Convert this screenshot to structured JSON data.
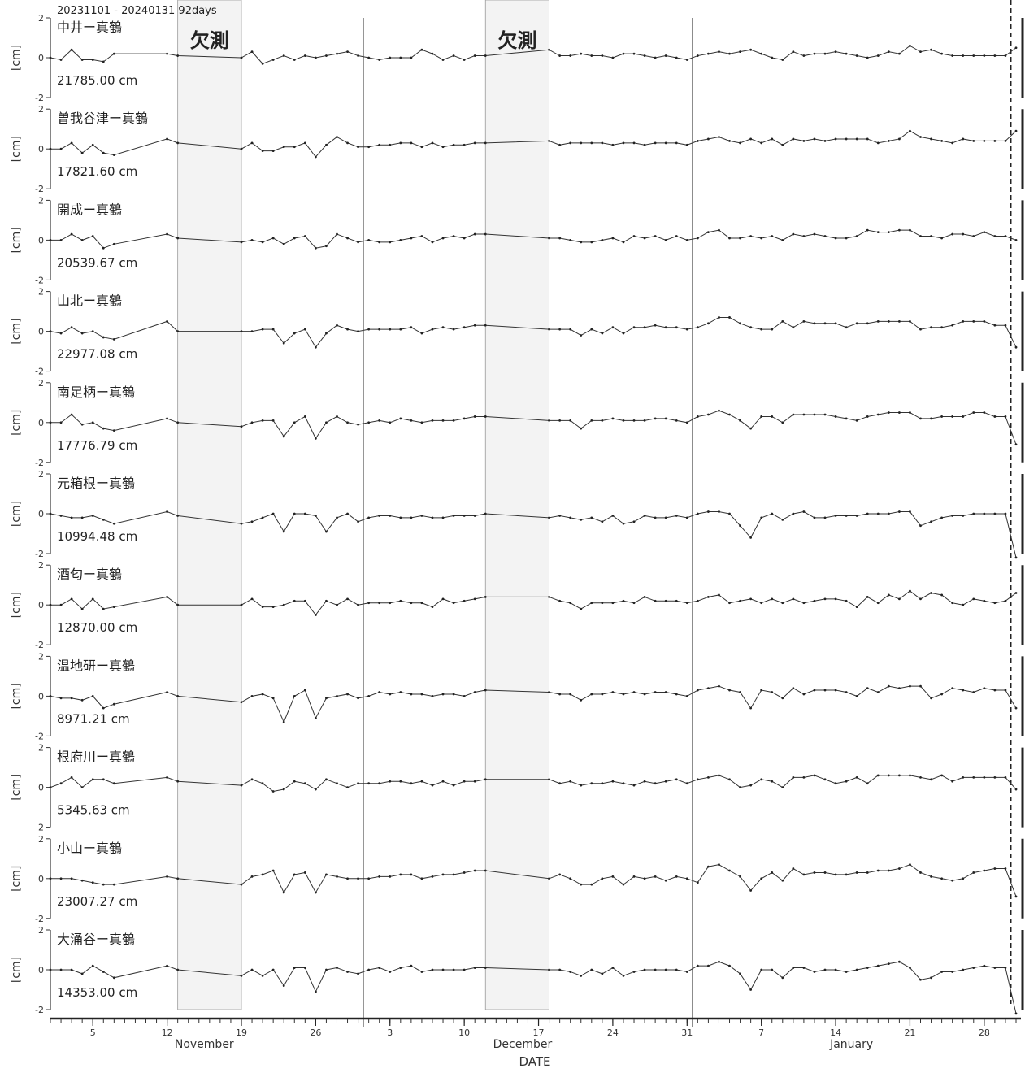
{
  "period_label": "20231101 - 20240131 92days",
  "chart_data": {
    "type": "line",
    "xlabel": "DATE",
    "ylabel": "[cm]",
    "ylim": [
      -2,
      2
    ],
    "yticks": [
      2,
      0,
      -2
    ],
    "x_start": "2023-11-01",
    "x_end": "2024-01-31",
    "month_labels": [
      "November",
      "December",
      "January"
    ],
    "day_ticks": [
      {
        "date": "2023-11-05",
        "label": "5"
      },
      {
        "date": "2023-11-12",
        "label": "12"
      },
      {
        "date": "2023-11-19",
        "label": "19"
      },
      {
        "date": "2023-11-26",
        "label": "26"
      },
      {
        "date": "2023-12-03",
        "label": "3"
      },
      {
        "date": "2023-12-10",
        "label": "10"
      },
      {
        "date": "2023-12-17",
        "label": "17"
      },
      {
        "date": "2023-12-24",
        "label": "24"
      },
      {
        "date": "2023-12-31",
        "label": "31"
      },
      {
        "date": "2024-01-07",
        "label": "7"
      },
      {
        "date": "2024-01-14",
        "label": "14"
      },
      {
        "date": "2024-01-21",
        "label": "21"
      },
      {
        "date": "2024-01-28",
        "label": "28"
      }
    ],
    "month_boundaries": [
      "2023-11-30",
      "2023-12-31"
    ],
    "missing_periods": [
      {
        "label": "欠測",
        "start": "2023-11-13",
        "end": "2023-11-19"
      },
      {
        "label": "欠測",
        "start": "2023-12-12",
        "end": "2023-12-18"
      }
    ],
    "marker_date": "2024-01-30",
    "series_dates": [
      "2023-11-01",
      "2023-11-02",
      "2023-11-03",
      "2023-11-04",
      "2023-11-05",
      "2023-11-06",
      "2023-11-07",
      "2023-11-12",
      "2023-11-13",
      "2023-11-19",
      "2023-11-20",
      "2023-11-21",
      "2023-11-22",
      "2023-11-23",
      "2023-11-24",
      "2023-11-25",
      "2023-11-26",
      "2023-11-27",
      "2023-11-28",
      "2023-11-29",
      "2023-11-30",
      "2023-12-01",
      "2023-12-02",
      "2023-12-03",
      "2023-12-04",
      "2023-12-05",
      "2023-12-06",
      "2023-12-07",
      "2023-12-08",
      "2023-12-09",
      "2023-12-10",
      "2023-12-11",
      "2023-12-12",
      "2023-12-18",
      "2023-12-19",
      "2023-12-20",
      "2023-12-21",
      "2023-12-22",
      "2023-12-23",
      "2023-12-24",
      "2023-12-25",
      "2023-12-26",
      "2023-12-27",
      "2023-12-28",
      "2023-12-29",
      "2023-12-30",
      "2023-12-31",
      "2024-01-01",
      "2024-01-02",
      "2024-01-03",
      "2024-01-04",
      "2024-01-05",
      "2024-01-06",
      "2024-01-07",
      "2024-01-08",
      "2024-01-09",
      "2024-01-10",
      "2024-01-11",
      "2024-01-12",
      "2024-01-13",
      "2024-01-14",
      "2024-01-15",
      "2024-01-16",
      "2024-01-17",
      "2024-01-18",
      "2024-01-19",
      "2024-01-20",
      "2024-01-21",
      "2024-01-22",
      "2024-01-23",
      "2024-01-24",
      "2024-01-25",
      "2024-01-26",
      "2024-01-27",
      "2024-01-28",
      "2024-01-29",
      "2024-01-30",
      "2024-01-31"
    ],
    "series": [
      {
        "name": "中井ー真鶴",
        "distance": "21785.00 cm",
        "values": [
          0,
          -0.1,
          0.4,
          -0.1,
          -0.1,
          -0.2,
          0.2,
          0.2,
          0.1,
          0,
          0.3,
          -0.3,
          -0.1,
          0.1,
          -0.1,
          0.1,
          0,
          0.1,
          0.2,
          0.3,
          0.1,
          0,
          -0.1,
          0,
          0,
          0,
          0.4,
          0.2,
          -0.1,
          0.1,
          -0.1,
          0.1,
          0.1,
          0.4,
          0.1,
          0.1,
          0.2,
          0.1,
          0.1,
          0,
          0.2,
          0.2,
          0.1,
          0,
          0.1,
          0,
          -0.1,
          0.1,
          0.2,
          0.3,
          0.2,
          0.3,
          0.4,
          0.2,
          0,
          -0.1,
          0.3,
          0.1,
          0.2,
          0.2,
          0.3,
          0.2,
          0.1,
          0,
          0.1,
          0.3,
          0.2,
          0.6,
          0.3,
          0.4,
          0.2,
          0.1,
          0.1,
          0.1,
          0.1,
          0.1,
          0.1,
          0.5
        ]
      },
      {
        "name": "曽我谷津ー真鶴",
        "distance": "17821.60 cm",
        "values": [
          0,
          0,
          0.3,
          -0.2,
          0.2,
          -0.2,
          -0.3,
          0.5,
          0.3,
          0,
          0.3,
          -0.1,
          -0.1,
          0.1,
          0.1,
          0.3,
          -0.4,
          0.2,
          0.6,
          0.3,
          0.1,
          0.1,
          0.2,
          0.2,
          0.3,
          0.3,
          0.1,
          0.3,
          0.1,
          0.2,
          0.2,
          0.3,
          0.3,
          0.4,
          0.2,
          0.3,
          0.3,
          0.3,
          0.3,
          0.2,
          0.3,
          0.3,
          0.2,
          0.3,
          0.3,
          0.3,
          0.2,
          0.4,
          0.5,
          0.6,
          0.4,
          0.3,
          0.5,
          0.3,
          0.5,
          0.2,
          0.5,
          0.4,
          0.5,
          0.4,
          0.5,
          0.5,
          0.5,
          0.5,
          0.3,
          0.4,
          0.5,
          0.9,
          0.6,
          0.5,
          0.4,
          0.3,
          0.5,
          0.4,
          0.4,
          0.4,
          0.4,
          0.9
        ]
      },
      {
        "name": "開成ー真鶴",
        "distance": "20539.67 cm",
        "values": [
          0,
          0,
          0.3,
          0,
          0.2,
          -0.4,
          -0.2,
          0.3,
          0.1,
          -0.1,
          0,
          -0.1,
          0.1,
          -0.2,
          0.1,
          0.2,
          -0.4,
          -0.3,
          0.3,
          0.1,
          -0.1,
          0,
          -0.1,
          -0.1,
          0,
          0.1,
          0.2,
          -0.1,
          0.1,
          0.2,
          0.1,
          0.3,
          0.3,
          0.1,
          0.1,
          0,
          -0.1,
          -0.1,
          0,
          0.1,
          -0.1,
          0.2,
          0.1,
          0.2,
          0,
          0.2,
          0,
          0.1,
          0.4,
          0.5,
          0.1,
          0.1,
          0.2,
          0.1,
          0.2,
          0,
          0.3,
          0.2,
          0.3,
          0.2,
          0.1,
          0.1,
          0.2,
          0.5,
          0.4,
          0.4,
          0.5,
          0.5,
          0.2,
          0.2,
          0.1,
          0.3,
          0.3,
          0.2,
          0.4,
          0.2,
          0.2,
          0
        ]
      },
      {
        "name": "山北ー真鶴",
        "distance": "22977.08 cm",
        "values": [
          0,
          -0.1,
          0.2,
          -0.1,
          0,
          -0.3,
          -0.4,
          0.5,
          0,
          0,
          0,
          0.1,
          0.1,
          -0.6,
          -0.1,
          0.1,
          -0.8,
          -0.1,
          0.3,
          0.1,
          0,
          0.1,
          0.1,
          0.1,
          0.1,
          0.2,
          -0.1,
          0.1,
          0.2,
          0.1,
          0.2,
          0.3,
          0.3,
          0.1,
          0.1,
          0.1,
          -0.2,
          0.1,
          -0.1,
          0.2,
          -0.1,
          0.2,
          0.2,
          0.3,
          0.2,
          0.2,
          0.1,
          0.2,
          0.4,
          0.7,
          0.7,
          0.4,
          0.2,
          0.1,
          0.1,
          0.5,
          0.2,
          0.5,
          0.4,
          0.4,
          0.4,
          0.2,
          0.4,
          0.4,
          0.5,
          0.5,
          0.5,
          0.5,
          0.1,
          0.2,
          0.2,
          0.3,
          0.5,
          0.5,
          0.5,
          0.3,
          0.3,
          -0.8
        ]
      },
      {
        "name": "南足柄ー真鶴",
        "distance": "17776.79 cm",
        "values": [
          0,
          0,
          0.4,
          -0.1,
          0,
          -0.3,
          -0.4,
          0.2,
          0,
          -0.2,
          0,
          0.1,
          0.1,
          -0.7,
          0,
          0.3,
          -0.8,
          0,
          0.3,
          0,
          -0.1,
          0,
          0.1,
          0,
          0.2,
          0.1,
          0,
          0.1,
          0.1,
          0.1,
          0.2,
          0.3,
          0.3,
          0.1,
          0.1,
          0.1,
          -0.3,
          0.1,
          0.1,
          0.2,
          0.1,
          0.1,
          0.1,
          0.2,
          0.2,
          0.1,
          0,
          0.3,
          0.4,
          0.6,
          0.4,
          0.1,
          -0.3,
          0.3,
          0.3,
          0,
          0.4,
          0.4,
          0.4,
          0.4,
          0.3,
          0.2,
          0.1,
          0.3,
          0.4,
          0.5,
          0.5,
          0.5,
          0.2,
          0.2,
          0.3,
          0.3,
          0.3,
          0.5,
          0.5,
          0.3,
          0.3,
          -1.1
        ]
      },
      {
        "name": "元箱根ー真鶴",
        "distance": "10994.48 cm",
        "values": [
          0,
          -0.1,
          -0.2,
          -0.2,
          -0.1,
          -0.3,
          -0.5,
          0.1,
          -0.1,
          -0.5,
          -0.4,
          -0.2,
          0,
          -0.9,
          0,
          0,
          -0.1,
          -0.9,
          -0.2,
          0,
          -0.4,
          -0.2,
          -0.1,
          -0.1,
          -0.2,
          -0.2,
          -0.1,
          -0.2,
          -0.2,
          -0.1,
          -0.1,
          -0.1,
          0,
          -0.2,
          -0.1,
          -0.2,
          -0.3,
          -0.2,
          -0.4,
          -0.1,
          -0.5,
          -0.4,
          -0.1,
          -0.2,
          -0.2,
          -0.1,
          -0.2,
          0,
          0.1,
          0.1,
          0,
          -0.6,
          -1.2,
          -0.2,
          0,
          -0.3,
          0,
          0.1,
          -0.2,
          -0.2,
          -0.1,
          -0.1,
          -0.1,
          0,
          0,
          0,
          0.1,
          0.1,
          -0.6,
          -0.4,
          -0.2,
          -0.1,
          -0.1,
          0,
          0,
          0,
          0,
          -2.2
        ]
      },
      {
        "name": "酒匂ー真鶴",
        "distance": "12870.00 cm",
        "values": [
          0,
          0,
          0.3,
          -0.2,
          0.3,
          -0.2,
          -0.1,
          0.4,
          0,
          0,
          0.3,
          -0.1,
          -0.1,
          0,
          0.2,
          0.2,
          -0.5,
          0.2,
          0,
          0.3,
          0,
          0.1,
          0.1,
          0.1,
          0.2,
          0.1,
          0.1,
          -0.1,
          0.3,
          0.1,
          0.2,
          0.3,
          0.4,
          0.4,
          0.2,
          0.1,
          -0.2,
          0.1,
          0.1,
          0.1,
          0.2,
          0.1,
          0.4,
          0.2,
          0.2,
          0.2,
          0.1,
          0.2,
          0.4,
          0.5,
          0.1,
          0.2,
          0.3,
          0.1,
          0.3,
          0.1,
          0.3,
          0.1,
          0.2,
          0.3,
          0.3,
          0.2,
          -0.1,
          0.4,
          0.1,
          0.5,
          0.3,
          0.7,
          0.3,
          0.6,
          0.5,
          0.1,
          0,
          0.3,
          0.2,
          0.1,
          0.2,
          0.6
        ]
      },
      {
        "name": "温地研ー真鶴",
        "distance": "8971.21 cm",
        "values": [
          0,
          -0.1,
          -0.1,
          -0.2,
          0,
          -0.6,
          -0.4,
          0.2,
          0,
          -0.3,
          0,
          0.1,
          -0.1,
          -1.3,
          0,
          0.3,
          -1.1,
          -0.1,
          0,
          0.1,
          -0.1,
          0,
          0.2,
          0.1,
          0.2,
          0.1,
          0.1,
          0,
          0.1,
          0.1,
          0,
          0.2,
          0.3,
          0.2,
          0.1,
          0.1,
          -0.2,
          0.1,
          0.1,
          0.2,
          0.1,
          0.2,
          0.1,
          0.2,
          0.2,
          0.1,
          0,
          0.3,
          0.4,
          0.5,
          0.3,
          0.2,
          -0.6,
          0.3,
          0.2,
          -0.1,
          0.4,
          0.1,
          0.3,
          0.3,
          0.3,
          0.2,
          0,
          0.4,
          0.2,
          0.5,
          0.4,
          0.5,
          0.5,
          -0.1,
          0.1,
          0.4,
          0.3,
          0.2,
          0.4,
          0.3,
          0.3,
          -0.6
        ]
      },
      {
        "name": "根府川ー真鶴",
        "distance": "5345.63 cm",
        "values": [
          0,
          0.2,
          0.5,
          0,
          0.4,
          0.4,
          0.2,
          0.5,
          0.3,
          0.1,
          0.4,
          0.2,
          -0.2,
          -0.1,
          0.3,
          0.2,
          -0.1,
          0.4,
          0.2,
          0,
          0.2,
          0.2,
          0.2,
          0.3,
          0.3,
          0.2,
          0.3,
          0.1,
          0.3,
          0.1,
          0.3,
          0.3,
          0.4,
          0.4,
          0.2,
          0.3,
          0.1,
          0.2,
          0.2,
          0.3,
          0.2,
          0.1,
          0.3,
          0.2,
          0.3,
          0.4,
          0.2,
          0.4,
          0.5,
          0.6,
          0.4,
          0,
          0.1,
          0.4,
          0.3,
          0,
          0.5,
          0.5,
          0.6,
          0.4,
          0.2,
          0.3,
          0.5,
          0.2,
          0.6,
          0.6,
          0.6,
          0.6,
          0.5,
          0.4,
          0.6,
          0.3,
          0.5,
          0.5,
          0.5,
          0.5,
          0.5,
          -0.1
        ]
      },
      {
        "name": "小山ー真鶴",
        "distance": "23007.27 cm",
        "values": [
          0,
          0,
          0,
          -0.1,
          -0.2,
          -0.3,
          -0.3,
          0.1,
          0,
          -0.3,
          0.1,
          0.2,
          0.4,
          -0.7,
          0.2,
          0.3,
          -0.7,
          0.2,
          0.1,
          0,
          0,
          0,
          0.1,
          0.1,
          0.2,
          0.2,
          0,
          0.1,
          0.2,
          0.2,
          0.3,
          0.4,
          0.4,
          0,
          0.2,
          0,
          -0.3,
          -0.3,
          0,
          0.1,
          -0.3,
          0.1,
          0,
          0.1,
          -0.1,
          0.1,
          0,
          -0.2,
          0.6,
          0.7,
          0.4,
          0.1,
          -0.6,
          0,
          0.3,
          -0.1,
          0.5,
          0.2,
          0.3,
          0.3,
          0.2,
          0.2,
          0.3,
          0.3,
          0.4,
          0.4,
          0.5,
          0.7,
          0.3,
          0.1,
          0,
          -0.1,
          0,
          0.3,
          0.4,
          0.5,
          0.5,
          -0.9
        ]
      },
      {
        "name": "大涌谷ー真鶴",
        "distance": "14353.00 cm",
        "values": [
          0,
          0,
          0,
          -0.2,
          0.2,
          -0.1,
          -0.4,
          0.2,
          0,
          -0.3,
          0,
          -0.3,
          0,
          -0.8,
          0.1,
          0.1,
          -1.1,
          0,
          0.1,
          -0.1,
          -0.2,
          0,
          0.1,
          -0.1,
          0.1,
          0.2,
          -0.1,
          0,
          0,
          0,
          0,
          0.1,
          0.1,
          0,
          0,
          -0.1,
          -0.3,
          0,
          -0.2,
          0.1,
          -0.3,
          -0.1,
          0,
          0,
          0,
          0,
          -0.1,
          0.2,
          0.2,
          0.4,
          0.2,
          -0.2,
          -1,
          0,
          0,
          -0.4,
          0.1,
          0.1,
          -0.1,
          0,
          0,
          -0.1,
          0,
          0.1,
          0.2,
          0.3,
          0.4,
          0.1,
          -0.5,
          -0.4,
          -0.1,
          -0.1,
          0,
          0.1,
          0.2,
          0.1,
          0.1,
          -2.2
        ]
      }
    ]
  }
}
